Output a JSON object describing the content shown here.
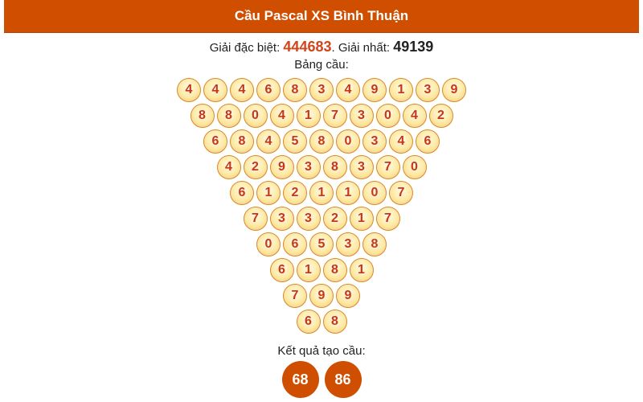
{
  "header": {
    "title": "Cầu Pascal XS Bình Thuận"
  },
  "prize": {
    "special_label": "Giải đặc biệt: ",
    "special_value": "444683",
    "separator": ". ",
    "first_label": "Giải nhất: ",
    "first_value": "49139"
  },
  "table_label": "Bảng cầu:",
  "rows": [
    [
      "4",
      "4",
      "4",
      "6",
      "8",
      "3",
      "4",
      "9",
      "1",
      "3",
      "9"
    ],
    [
      "8",
      "8",
      "0",
      "4",
      "1",
      "7",
      "3",
      "0",
      "4",
      "2"
    ],
    [
      "6",
      "8",
      "4",
      "5",
      "8",
      "0",
      "3",
      "4",
      "6"
    ],
    [
      "4",
      "2",
      "9",
      "3",
      "8",
      "3",
      "7",
      "0"
    ],
    [
      "6",
      "1",
      "2",
      "1",
      "1",
      "0",
      "7"
    ],
    [
      "7",
      "3",
      "3",
      "2",
      "1",
      "7"
    ],
    [
      "0",
      "6",
      "5",
      "3",
      "8"
    ],
    [
      "6",
      "1",
      "8",
      "1"
    ],
    [
      "7",
      "9",
      "9"
    ],
    [
      "6",
      "8"
    ]
  ],
  "result_label": "Kết quả tạo cầu:",
  "results": [
    "68",
    "86"
  ],
  "colors": {
    "accent": "#d04e00",
    "digit": "#c8341e",
    "special": "#d0451b"
  }
}
